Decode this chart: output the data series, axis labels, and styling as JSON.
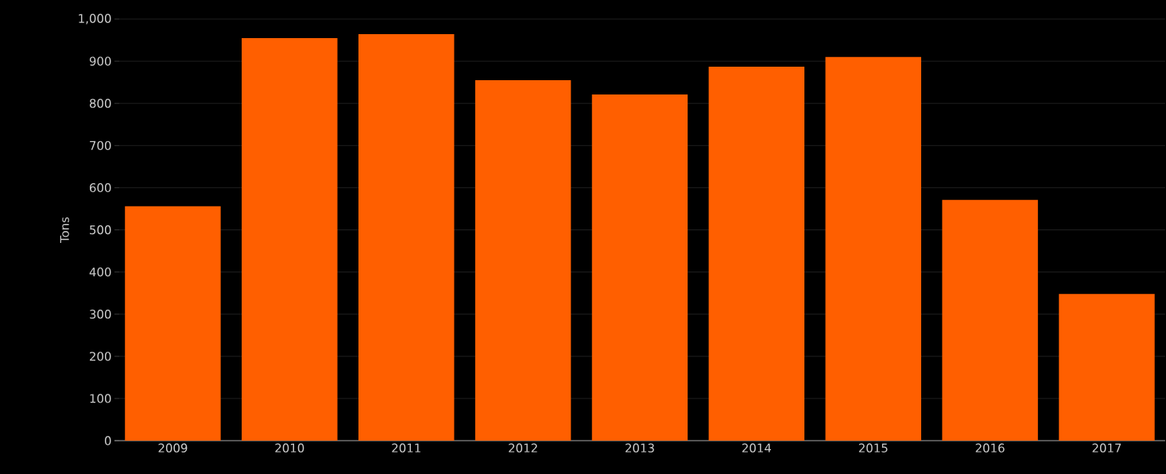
{
  "chart_data": {
    "type": "bar",
    "ylabel": "Tons",
    "categories": [
      "2009",
      "2010",
      "2011",
      "2012",
      "2013",
      "2014",
      "2015",
      "2016",
      "2017"
    ],
    "values": [
      556,
      955,
      964,
      855,
      821,
      887,
      910,
      571,
      348
    ],
    "color": "#ff5f00",
    "ylim": [
      0,
      1000
    ],
    "yticks": [
      0,
      100,
      200,
      300,
      400,
      500,
      600,
      700,
      800,
      900,
      {
        "value": 1000,
        "label": "1,000"
      }
    ],
    "grid": "y"
  }
}
